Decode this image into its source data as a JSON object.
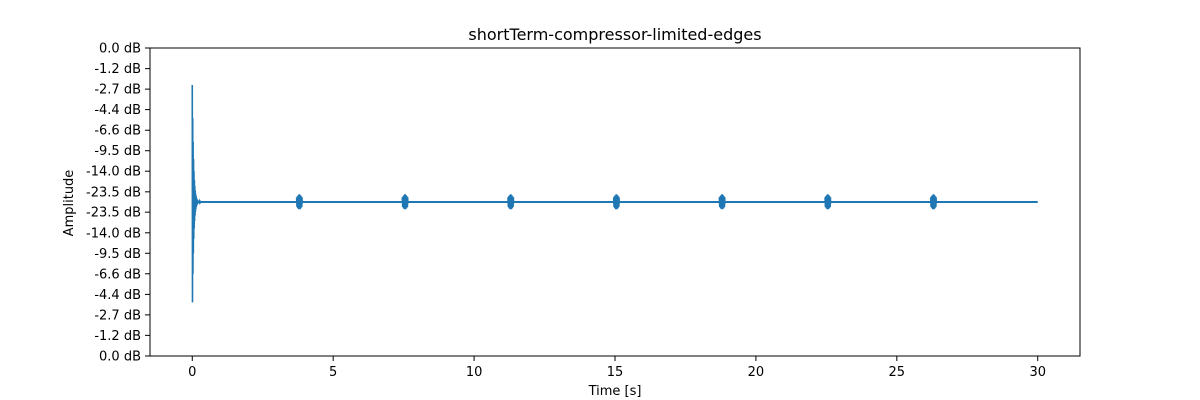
{
  "chart_data": {
    "type": "line",
    "title": "shortTerm-compressor-limited-edges",
    "xlabel": "Time [s]",
    "ylabel": "Amplitude",
    "xlim": [
      -1.5,
      31.5
    ],
    "ylim": [
      -1.0,
      1.0
    ],
    "x_ticks": [
      0,
      5,
      10,
      15,
      20,
      25,
      30
    ],
    "y_ticks": [
      {
        "value": 1.0,
        "label": "0.0 dB"
      },
      {
        "value": 0.866,
        "label": "-1.2 dB"
      },
      {
        "value": 0.733,
        "label": "-2.7 dB"
      },
      {
        "value": 0.6,
        "label": "-4.4 dB"
      },
      {
        "value": 0.466,
        "label": "-6.6 dB"
      },
      {
        "value": 0.333,
        "label": "-9.5 dB"
      },
      {
        "value": 0.2,
        "label": "-14.0 dB"
      },
      {
        "value": 0.066,
        "label": "-23.5 dB"
      },
      {
        "value": -0.066,
        "label": "-23.5 dB"
      },
      {
        "value": -0.2,
        "label": "-14.0 dB"
      },
      {
        "value": -0.333,
        "label": "-9.5 dB"
      },
      {
        "value": -0.466,
        "label": "-6.6 dB"
      },
      {
        "value": -0.6,
        "label": "-4.4 dB"
      },
      {
        "value": -0.733,
        "label": "-2.7 dB"
      },
      {
        "value": -0.866,
        "label": "-1.2 dB"
      },
      {
        "value": -1.0,
        "label": "0.0 dB"
      }
    ],
    "grid": false,
    "series": [
      {
        "color": "#1f77b4",
        "baseline": 0.0,
        "x_range": [
          0,
          30
        ],
        "main_burst": {
          "t": 0.0,
          "peak_pos": 0.76,
          "peak_neg": -0.77
        },
        "edge_bursts": [
          3.8,
          7.55,
          11.3,
          15.05,
          18.8,
          22.55,
          26.3
        ],
        "edge_burst_amplitude": 0.05
      }
    ]
  }
}
